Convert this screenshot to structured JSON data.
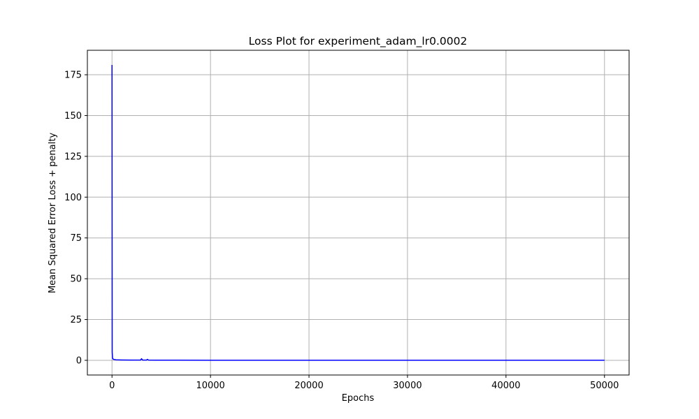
{
  "chart_data": {
    "type": "line",
    "title": "Loss Plot for experiment_adam_lr0.0002",
    "xlabel": "Epochs",
    "ylabel": "Mean Squared Error Loss + penalty",
    "xlim": [
      -2500,
      52500
    ],
    "ylim": [
      -9,
      190
    ],
    "x_ticks": [
      0,
      10000,
      20000,
      30000,
      40000,
      50000
    ],
    "y_ticks": [
      0,
      25,
      50,
      75,
      100,
      125,
      150,
      175
    ],
    "grid": true,
    "line_color": "#0000ff",
    "series": [
      {
        "x": [
          0,
          20,
          60,
          150,
          400,
          1000,
          2000,
          2900,
          3000,
          3100,
          3500,
          3600,
          3700,
          4500,
          6000,
          10000,
          20000,
          30000,
          40000,
          50000
        ],
        "values": [
          181,
          5,
          1.2,
          0.6,
          0.3,
          0.2,
          0.15,
          0.15,
          1.0,
          0.15,
          0.15,
          0.6,
          0.15,
          0.1,
          0.1,
          0.05,
          0.04,
          0.03,
          0.03,
          0.03
        ]
      }
    ]
  }
}
